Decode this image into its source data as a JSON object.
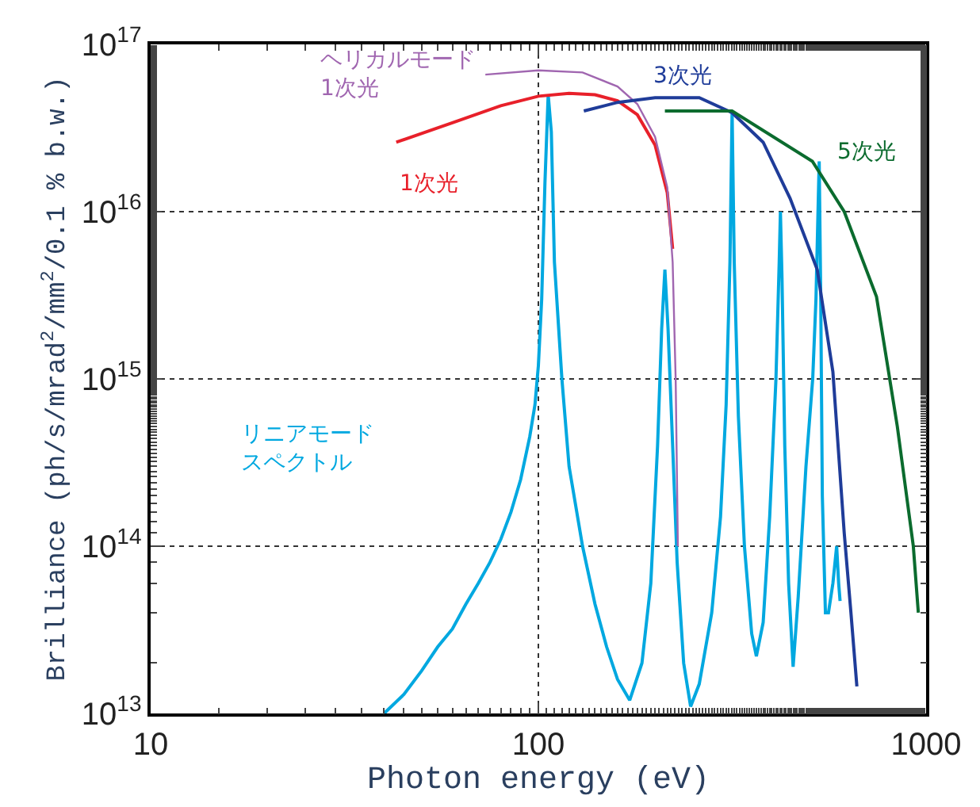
{
  "chart_data": {
    "type": "line",
    "xlabel": "Photon energy (eV)",
    "ylabel": "Brilliance (ph/s/mrad$^{2}$/mm$^{2}$/0.1 % b.w.)",
    "log": "xy",
    "grid": true,
    "legend": false,
    "xlim": [
      10,
      1000
    ],
    "ylim": [
      10000000000000.0,
      1e+17
    ],
    "xticks": [
      10,
      100,
      1000
    ],
    "yticks": [
      {
        "value": 10000000000000.0,
        "label": "10$^{13}$"
      },
      {
        "value": 100000000000000.0,
        "label": "10$^{14}$"
      },
      {
        "value": 1000000000000000.0,
        "label": "10$^{15}$"
      },
      {
        "value": 1e+16,
        "label": "10$^{16}$"
      },
      {
        "value": 1e+17,
        "label": "10$^{17}$"
      }
    ],
    "series": [
      {
        "name": "リニアモードスペクトル",
        "color": "#00a8e0",
        "x": [
          40,
          45,
          50,
          55,
          60,
          65,
          70,
          75,
          80,
          85,
          90,
          95,
          98,
          100,
          102,
          104,
          106,
          108,
          110,
          115,
          120,
          130,
          140,
          150,
          160,
          172,
          185,
          195,
          203,
          208,
          212,
          216,
          222,
          228,
          237,
          247,
          260,
          280,
          295,
          305,
          312,
          316,
          320,
          328,
          340,
          355,
          365,
          380,
          395,
          410,
          418,
          421,
          425,
          432,
          442,
          454,
          468,
          490,
          510,
          520,
          530,
          535,
          540,
          550,
          560,
          575,
          588,
          595,
          600
        ],
        "values": [
          10000000000000.0,
          13000000000000.0,
          18000000000000.0,
          25000000000000.0,
          32000000000000.0,
          45000000000000.0,
          60000000000000.0,
          80000000000000.0,
          110000000000000.0,
          160000000000000.0,
          250000000000000.0,
          450000000000000.0,
          700000000000000.0,
          1200000000000000.0,
          3000000000000000.0,
          1.5e+16,
          5e+16,
          3e+16,
          5000000000000000.0,
          1000000000000000.0,
          300000000000000.0,
          100000000000000.0,
          45000000000000.0,
          25000000000000.0,
          16000000000000.0,
          12000000000000.0,
          20000000000000.0,
          60000000000000.0,
          400000000000000.0,
          2000000000000000.0,
          4500000000000000.0,
          2000000000000000.0,
          400000000000000.0,
          80000000000000.0,
          20000000000000.0,
          11000000000000.0,
          15000000000000.0,
          40000000000000.0,
          150000000000000.0,
          700000000000000.0,
          5000000000000000.0,
          4e+16,
          5000000000000000.0,
          600000000000000.0,
          100000000000000.0,
          30000000000000.0,
          22000000000000.0,
          35000000000000.0,
          150000000000000.0,
          1000000000000000.0,
          5000000000000000.0,
          1e+16,
          4000000000000000.0,
          400000000000000.0,
          60000000000000.0,
          19000000000000.0,
          50000000000000.0,
          300000000000000.0,
          1000000000000000.0,
          3000000000000000.0,
          2e+16,
          3000000000000000.0,
          200000000000000.0,
          40000000000000.0,
          40000000000000.0,
          60000000000000.0,
          100000000000000.0,
          60000000000000.0,
          47000000000000.0
        ]
      },
      {
        "name": "1次光",
        "color": "#e8202a",
        "x": [
          43,
          60,
          80,
          100,
          120,
          140,
          160,
          180,
          200,
          215,
          222
        ],
        "values": [
          2.6e+16,
          3.4e+16,
          4.3e+16,
          4.9e+16,
          5.1e+16,
          5e+16,
          4.6e+16,
          3.8e+16,
          2.5e+16,
          1.3e+16,
          6000000000000000.0
        ]
      },
      {
        "name": "ヘリカルモード1次光",
        "color": "#a066b0",
        "x": [
          73,
          100,
          130,
          160,
          180,
          200,
          215,
          222,
          226,
          229
        ],
        "values": [
          6.6e+16,
          7e+16,
          6.8e+16,
          5.6e+16,
          4.4e+16,
          2.8e+16,
          1.4e+16,
          5000000000000000.0,
          1000000000000000.0,
          100000000000000.0
        ]
      },
      {
        "name": "3次光",
        "color": "#1f3c99",
        "x": [
          131,
          160,
          200,
          260,
          316,
          380,
          446,
          524,
          575,
          615,
          640,
          663
        ],
        "values": [
          4e+16,
          4.5e+16,
          4.8e+16,
          4.8e+16,
          3.9e+16,
          2.6e+16,
          1.2e+16,
          4500000000000000.0,
          1100000000000000.0,
          120000000000000.0,
          40000000000000.0,
          14500000000000.0
        ]
      },
      {
        "name": "5次光",
        "color": "#0b6b2e",
        "x": [
          212,
          316,
          509,
          615,
          745,
          843,
          927,
          955
        ],
        "values": [
          4e+16,
          4e+16,
          2e+16,
          1e+16,
          3100000000000000.0,
          520000000000000.0,
          100000000000000.0,
          40000000000000.0
        ]
      }
    ]
  }
}
